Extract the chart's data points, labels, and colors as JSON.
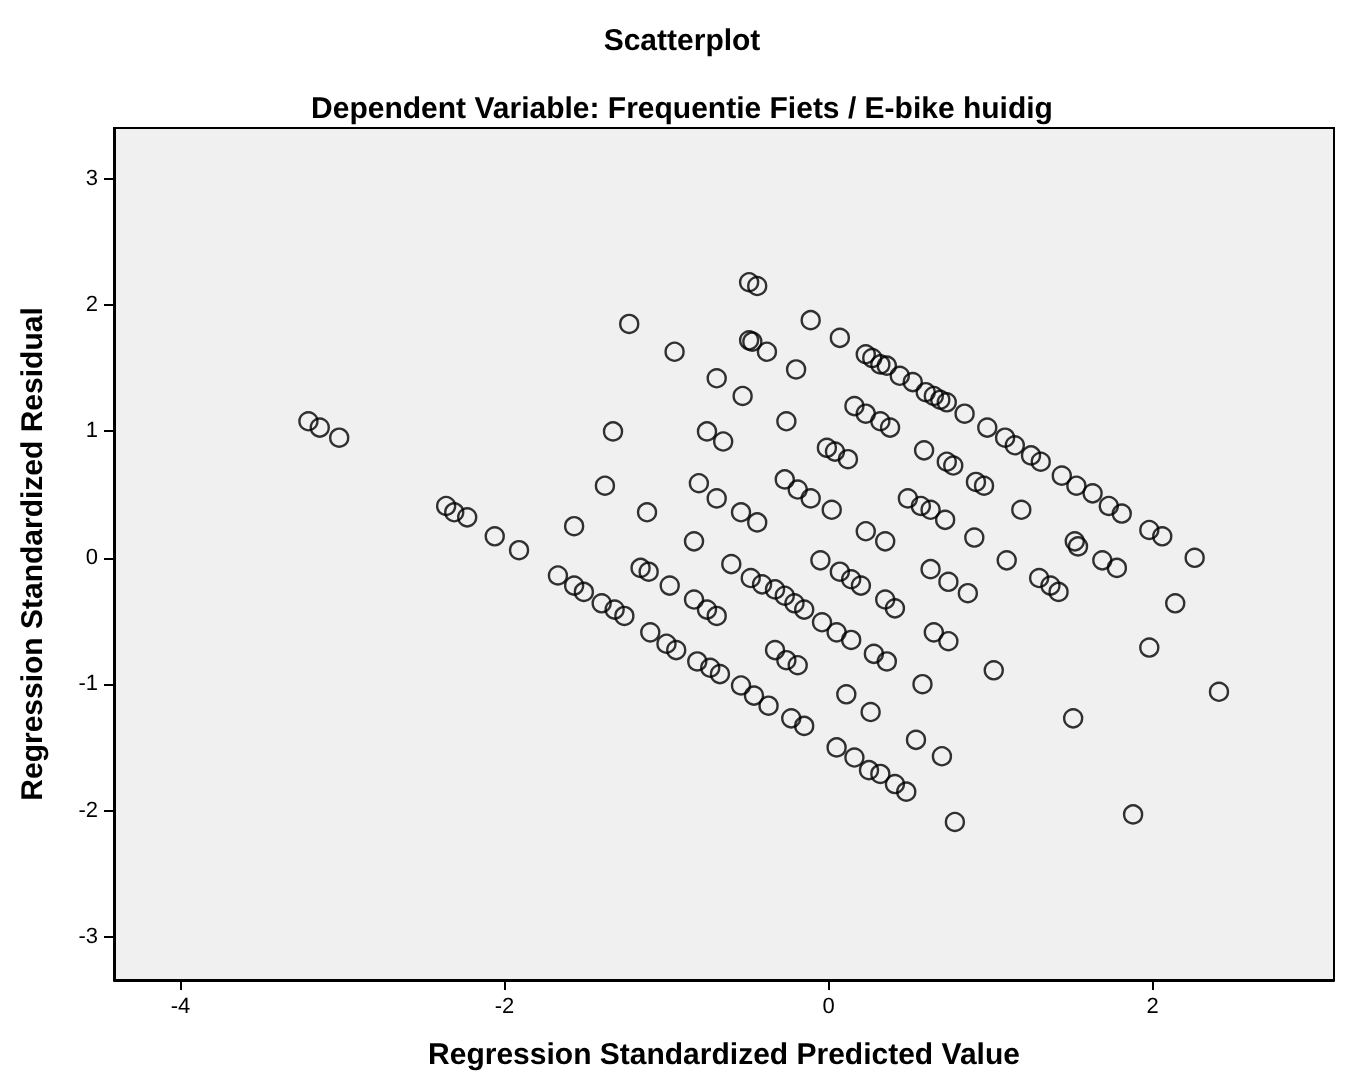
{
  "chart_data": {
    "type": "scatter",
    "title": "Scatterplot",
    "subtitle": "Dependent Variable: Frequentie Fiets / E-bike huidig",
    "xlabel": "Regression Standardized Predicted Value",
    "ylabel": "Regression Standardized Residual",
    "xlim": [
      -4.41,
      3.12
    ],
    "ylim": [
      -3.34,
      3.4
    ],
    "xticks": [
      -4,
      -2,
      0,
      2
    ],
    "yticks": [
      -3,
      -2,
      -1,
      0,
      1,
      2,
      3
    ],
    "grid": false,
    "marker": "circle",
    "series": [
      {
        "color": "#000000",
        "x": [
          -3.21,
          -3.14,
          -3.02,
          -2.36,
          -2.31,
          -2.23,
          -2.06,
          -1.91,
          -1.57,
          -1.67,
          -1.57,
          -1.51,
          -1.4,
          -1.32,
          -1.26,
          -1.1,
          -1.0,
          -0.94,
          -0.81,
          -0.73,
          -0.67,
          -0.54,
          -0.46,
          -0.37,
          -0.23,
          -0.15,
          -1.38,
          -1.33,
          -1.12,
          -1.16,
          -1.11,
          -0.98,
          -0.83,
          -0.75,
          -0.69,
          -0.83,
          -0.6,
          -1.23,
          -0.95,
          -0.69,
          -0.53,
          -0.8,
          -0.69,
          -0.75,
          -0.65,
          -0.54,
          -0.44,
          -0.49,
          -0.44,
          -0.49,
          -0.47,
          -0.38,
          -0.2,
          -0.11,
          0.07,
          -0.26,
          -0.27,
          -0.19,
          -0.11,
          0.02,
          -0.48,
          -0.41,
          -0.33,
          -0.27,
          -0.21,
          -0.15,
          -0.05,
          0.07,
          0.14,
          0.2,
          0.35,
          0.41,
          -0.33,
          -0.26,
          -0.19,
          -0.04,
          0.05,
          0.14,
          0.28,
          0.36,
          0.11,
          0.26,
          0.05,
          0.16,
          0.25,
          0.32,
          0.41,
          0.48,
          0.54,
          0.7,
          0.78,
          0.58,
          0.65,
          0.74,
          0.63,
          0.74,
          0.86,
          0.23,
          0.27,
          0.32,
          0.36,
          0.44,
          0.52,
          0.6,
          0.65,
          0.69,
          0.73,
          0.84,
          0.16,
          0.23,
          0.32,
          0.38,
          -0.01,
          0.04,
          0.12,
          0.59,
          0.73,
          0.77,
          0.23,
          0.35,
          0.49,
          0.57,
          0.63,
          0.72,
          0.9,
          0.98,
          1.09,
          1.15,
          1.25,
          1.31,
          1.44,
          1.53,
          1.63,
          1.73,
          1.81,
          1.98,
          2.06,
          2.26,
          0.91,
          0.96,
          1.19,
          1.52,
          1.54,
          1.1,
          1.69,
          1.78,
          1.3,
          1.37,
          1.42,
          2.14,
          1.98,
          1.02,
          2.41,
          1.51,
          1.88
        ],
        "values": [
          1.08,
          1.03,
          0.95,
          0.41,
          0.36,
          0.32,
          0.17,
          0.06,
          0.25,
          -0.14,
          -0.22,
          -0.27,
          -0.36,
          -0.41,
          -0.46,
          -0.59,
          -0.68,
          -0.73,
          -0.82,
          -0.87,
          -0.92,
          -1.01,
          -1.09,
          -1.17,
          -1.27,
          -1.33,
          0.57,
          1.0,
          0.36,
          -0.08,
          -0.11,
          -0.22,
          -0.33,
          -0.41,
          -0.46,
          0.13,
          -0.05,
          1.85,
          1.63,
          1.42,
          1.28,
          0.59,
          0.47,
          1.0,
          0.92,
          0.36,
          0.28,
          2.18,
          2.15,
          1.72,
          1.71,
          1.63,
          1.49,
          1.88,
          1.74,
          1.08,
          0.62,
          0.54,
          0.47,
          0.38,
          -0.16,
          -0.21,
          -0.25,
          -0.3,
          -0.36,
          -0.41,
          -0.02,
          -0.11,
          -0.17,
          -0.22,
          -0.33,
          -0.4,
          -0.73,
          -0.81,
          -0.85,
          -0.51,
          -0.59,
          -0.65,
          -0.76,
          -0.82,
          -1.08,
          -1.22,
          -1.5,
          -1.58,
          -1.68,
          -1.71,
          -1.79,
          -1.85,
          -1.44,
          -1.57,
          -2.09,
          -1.0,
          -0.59,
          -0.66,
          -0.09,
          -0.19,
          -0.28,
          1.61,
          1.58,
          1.53,
          1.52,
          1.44,
          1.39,
          1.31,
          1.28,
          1.25,
          1.23,
          1.14,
          1.2,
          1.14,
          1.08,
          1.03,
          0.87,
          0.84,
          0.78,
          0.85,
          0.76,
          0.73,
          0.21,
          0.13,
          0.47,
          0.41,
          0.38,
          0.3,
          0.16,
          1.03,
          0.95,
          0.89,
          0.81,
          0.76,
          0.65,
          0.57,
          0.51,
          0.41,
          0.35,
          0.22,
          0.17,
          0.0,
          0.6,
          0.57,
          0.38,
          0.13,
          0.09,
          -0.02,
          -0.02,
          -0.08,
          -0.16,
          -0.22,
          -0.27,
          -0.36,
          -0.71,
          -0.89,
          -1.06,
          -1.27,
          -2.03
        ]
      }
    ]
  }
}
